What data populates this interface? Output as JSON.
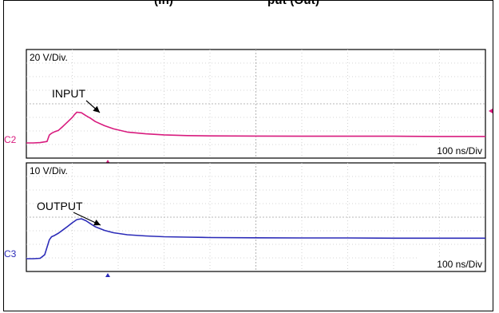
{
  "header_fragment": "(In)                           put (Out)",
  "chart_data": [
    {
      "type": "line",
      "name_label": "C2",
      "scale_label": "20 V/Div.",
      "time_label": "100 ns/Div",
      "annotation": "INPUT",
      "color": "#d81b7e",
      "grid": true,
      "x_divisions": 10,
      "y_divisions": 8,
      "x": [
        0,
        0.15,
        0.3,
        0.45,
        0.5,
        0.55,
        0.6,
        0.7,
        0.8,
        0.9,
        1.0,
        1.05,
        1.1,
        1.2,
        1.3,
        1.4,
        1.5,
        1.7,
        1.9,
        2.2,
        2.6,
        3.0,
        3.5,
        4.0,
        5.0,
        6.0,
        7.0,
        8.0,
        9.0,
        10.0
      ],
      "series": [
        {
          "values": [
            0.0,
            0.0,
            0.02,
            0.08,
            0.45,
            0.55,
            0.62,
            0.72,
            0.95,
            1.2,
            1.45,
            1.62,
            1.75,
            1.72,
            1.55,
            1.4,
            1.22,
            0.98,
            0.8,
            0.62,
            0.52,
            0.46,
            0.42,
            0.4,
            0.39,
            0.38,
            0.38,
            0.38,
            0.37,
            0.37
          ]
        }
      ]
    },
    {
      "type": "line",
      "name_label": "C3",
      "scale_label": "10 V/Div.",
      "time_label": "100 ns/Div",
      "annotation": "OUTPUT",
      "color": "#2b2bb8",
      "grid": true,
      "x_divisions": 10,
      "y_divisions": 8,
      "x": [
        0,
        0.15,
        0.3,
        0.4,
        0.5,
        0.55,
        0.6,
        0.7,
        0.8,
        0.9,
        1.0,
        1.1,
        1.2,
        1.3,
        1.4,
        1.5,
        1.7,
        1.9,
        2.2,
        2.6,
        3.0,
        3.5,
        4.0,
        5.0,
        6.0,
        7.0,
        8.0,
        9.0,
        10.0
      ],
      "series": [
        {
          "values": [
            0.0,
            0.0,
            0.02,
            0.2,
            0.95,
            1.1,
            1.15,
            1.28,
            1.45,
            1.62,
            1.8,
            1.96,
            2.0,
            1.9,
            1.75,
            1.6,
            1.42,
            1.3,
            1.2,
            1.14,
            1.1,
            1.08,
            1.06,
            1.05,
            1.04,
            1.04,
            1.03,
            1.03,
            1.03
          ]
        }
      ]
    }
  ]
}
